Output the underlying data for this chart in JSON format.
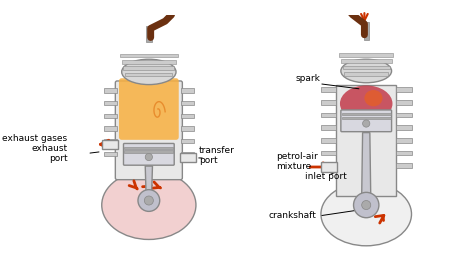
{
  "bg_color": "#ffffff",
  "engine_color": "#c8c8c8",
  "outline_color": "#888888",
  "piston_color": "#d0d0d8",
  "combustion_color_left": "#f5a020",
  "combustion_color_right": "#c03040",
  "arrow_color": "#cc3300",
  "text_color": "#000000",
  "fin_color": "#b0b0b0",
  "labels_left": {
    "exhaust_gases": "exhaust gases",
    "exhaust_port": "exhaust\nport",
    "transfer_port": "transfer\nport"
  },
  "labels_right": {
    "spark": "spark",
    "petrol_air": "petrol-air\nmixture",
    "inlet_port": "inlet port",
    "crankshaft": "crankshaft"
  }
}
